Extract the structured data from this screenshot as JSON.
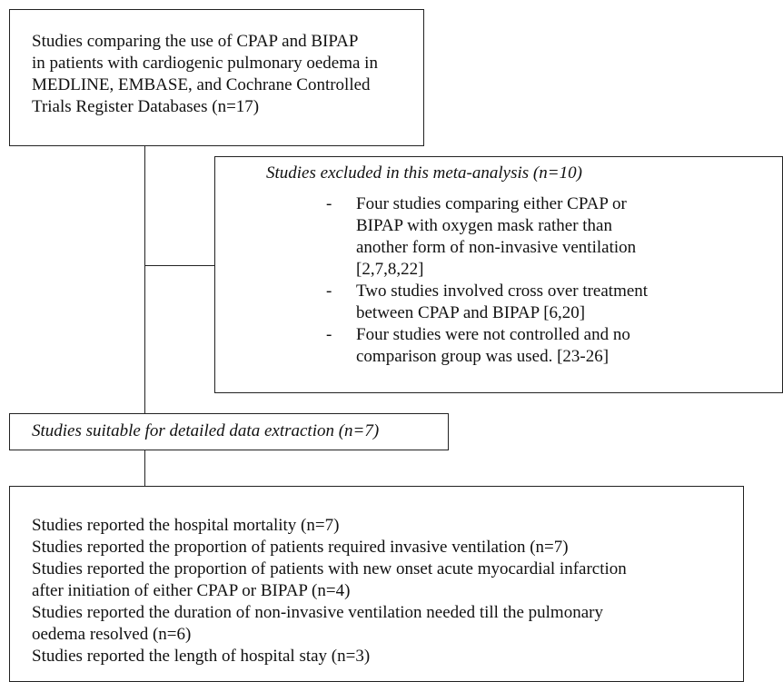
{
  "source": {
    "lines": [
      "Studies comparing the use of CPAP and BIPAP",
      "in patients with cardiogenic pulmonary oedema in",
      "MEDLINE, EMBASE, and Cochrane Controlled",
      "Trials Register Databases (n=17)"
    ]
  },
  "excluded": {
    "title": "Studies excluded in this meta-analysis (n=10)",
    "items": [
      {
        "lines": [
          "Four studies comparing either CPAP or",
          "BIPAP with oxygen mask rather than",
          "another form of non-invasive ventilation",
          "[2,7,8,22]"
        ]
      },
      {
        "lines": [
          "Two studies involved cross over treatment",
          "between CPAP and BIPAP [6,20]"
        ]
      },
      {
        "lines": [
          "Four studies were not controlled and no",
          "comparison group was used. [23-26]"
        ]
      }
    ]
  },
  "suitable": {
    "title": "Studies suitable for detailed data extraction (n=7)"
  },
  "outcomes": {
    "lines": [
      "Studies reported the hospital mortality (n=7)",
      "Studies reported the proportion of patients required invasive ventilation (n=7)",
      "Studies reported the proportion of patients with new onset acute myocardial infarction",
      "after initiation of either CPAP or BIPAP (n=4)",
      "Studies reported the duration of non-invasive ventilation needed till the pulmonary",
      "oedema resolved (n=6)",
      "Studies reported the length of hospital stay (n=3)"
    ]
  }
}
